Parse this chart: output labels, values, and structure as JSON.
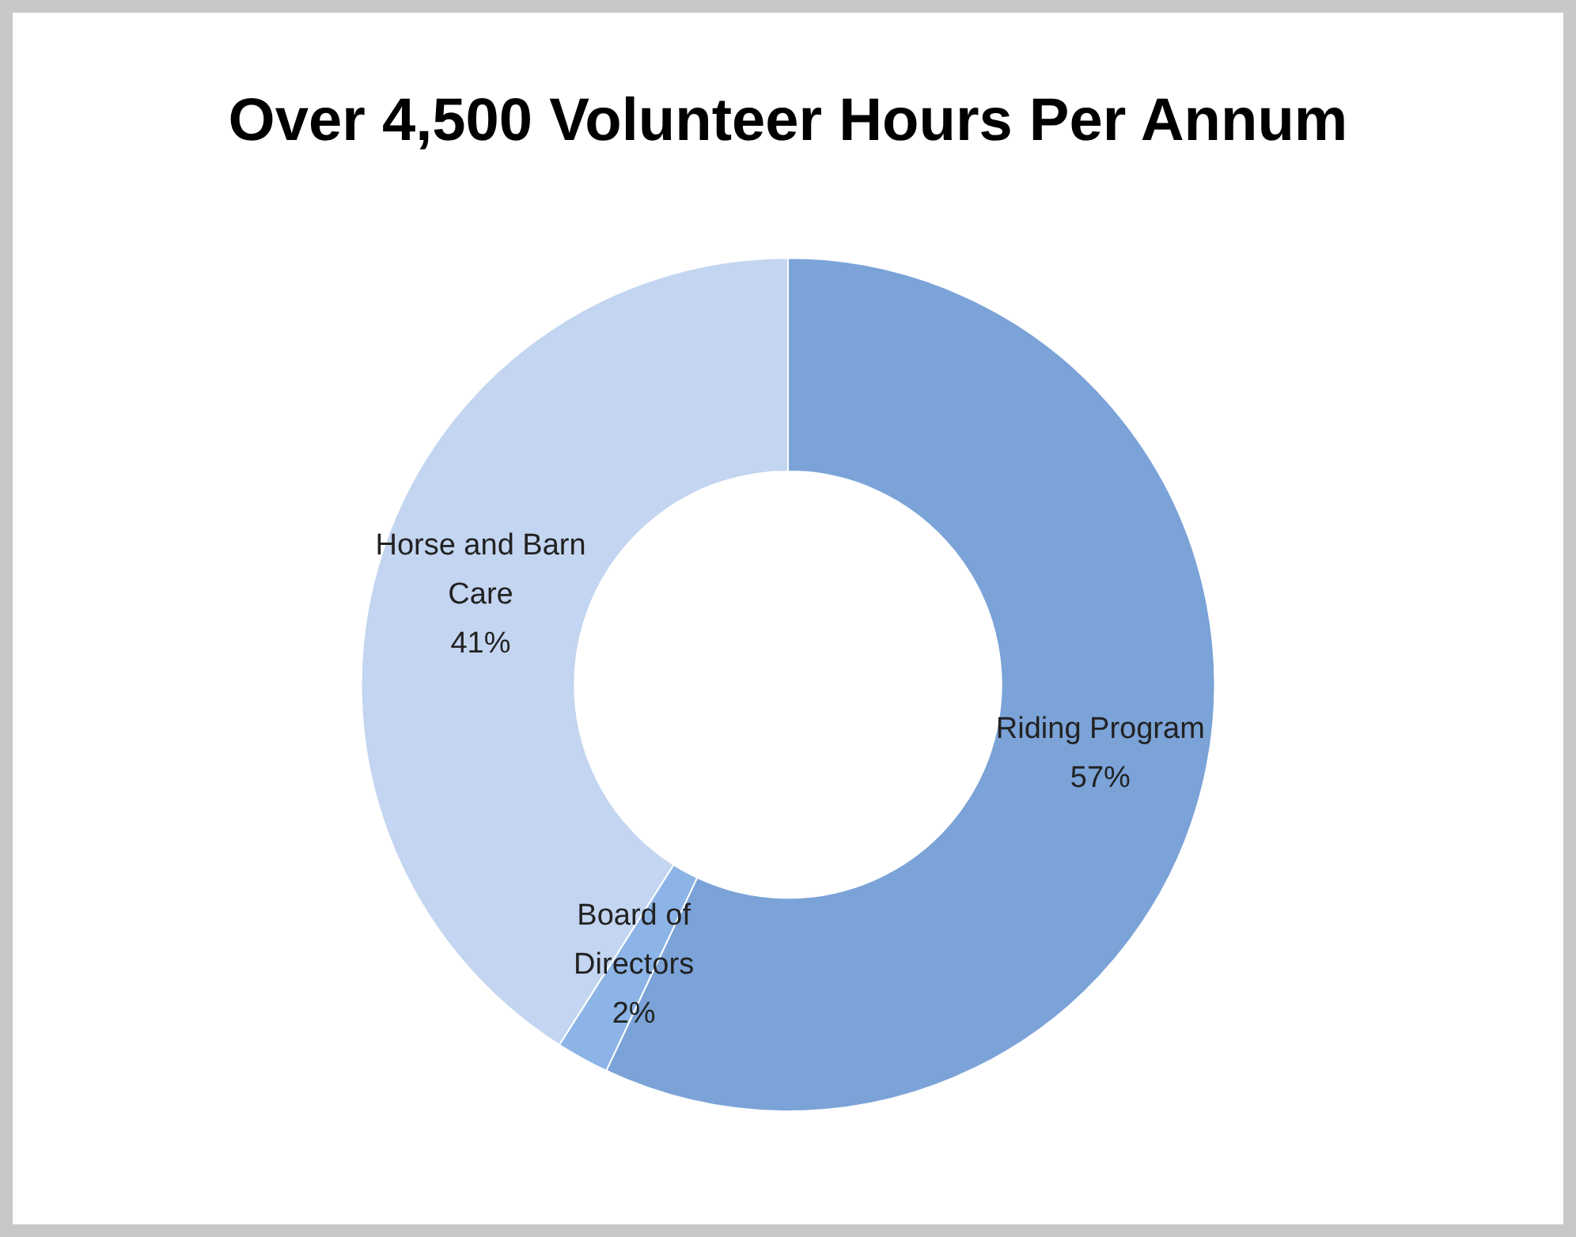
{
  "chart_data": {
    "type": "donut",
    "title": "Over 4,500 Volunteer Hours Per Annum",
    "categories": [
      "Riding Program",
      "Board of Directors",
      "Horse and Barn Care"
    ],
    "values": [
      57,
      2,
      41
    ],
    "colors": [
      "#7ba3d8",
      "#8cb4e6",
      "#c3d5f0"
    ],
    "value_labels": [
      "57%",
      "2%",
      "41%"
    ],
    "data_labels": true,
    "legend": false
  }
}
